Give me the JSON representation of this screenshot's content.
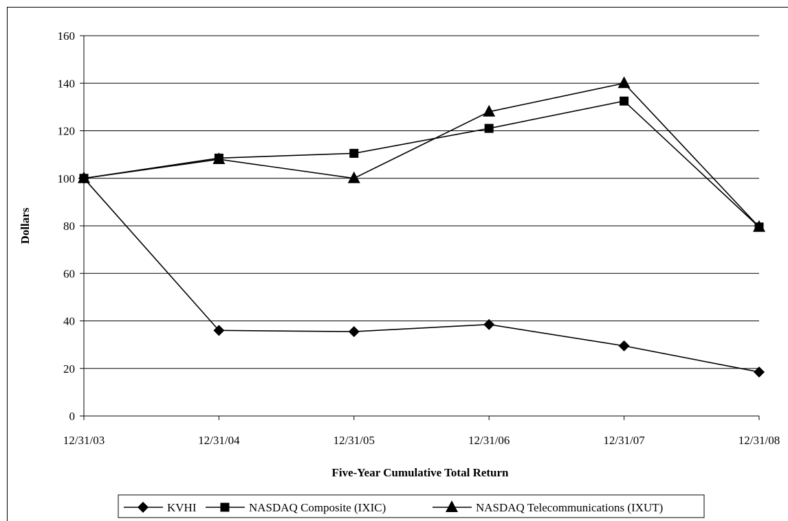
{
  "chart_data": {
    "type": "line",
    "title": "",
    "xlabel": "Five-Year Cumulative Total Return",
    "ylabel": "Dollars",
    "categories": [
      "12/31/03",
      "12/31/04",
      "12/31/05",
      "12/31/06",
      "12/31/07",
      "12/31/08"
    ],
    "ylim": [
      0,
      160
    ],
    "yticks": [
      0,
      20,
      40,
      60,
      80,
      100,
      120,
      140,
      160
    ],
    "grid": true,
    "legend_position": "bottom",
    "series": [
      {
        "name": "KVHI",
        "marker": "diamond",
        "values": [
          100,
          36,
          35.5,
          38.5,
          29.5,
          18.5
        ]
      },
      {
        "name": "NASDAQ Composite (IXIC)",
        "marker": "square",
        "values": [
          100,
          108.5,
          110.5,
          121,
          132.5,
          79.5
        ]
      },
      {
        "name": "NASDAQ Telecommunications (IXUT)",
        "marker": "triangle",
        "values": [
          100,
          108,
          100,
          128,
          140,
          79.5
        ]
      }
    ],
    "colors": {
      "line": "#000000",
      "grid": "#000000",
      "background": "#ffffff"
    }
  }
}
